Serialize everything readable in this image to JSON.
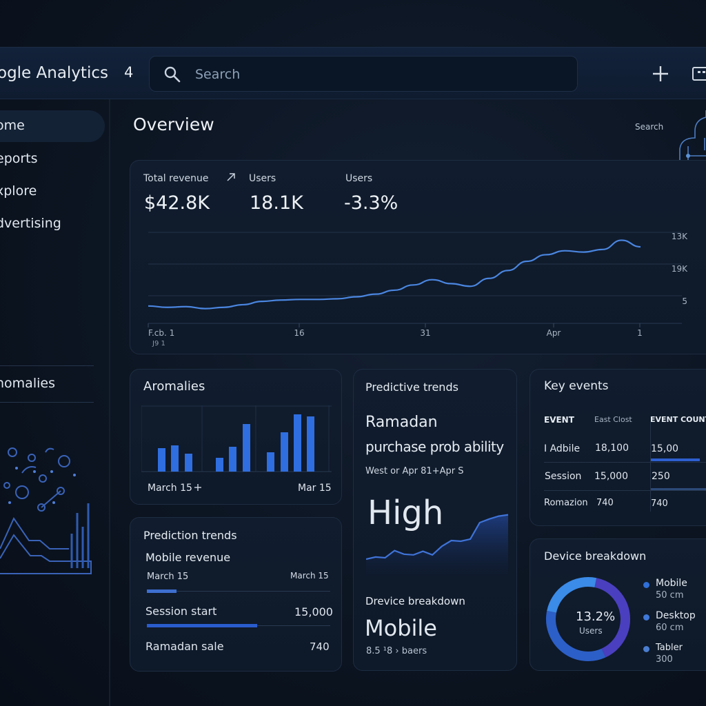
{
  "header": {
    "app_title": "ogle Analytics",
    "app_version": "4",
    "search_placeholder": "Search"
  },
  "sidebar": {
    "items": [
      {
        "label": "ome"
      },
      {
        "label": "eports"
      },
      {
        "label": "xplore"
      },
      {
        "label": "dvertising"
      }
    ],
    "section_label": "nomalies"
  },
  "overview": {
    "title": "Overview",
    "search_label": "Search",
    "metrics": [
      {
        "label": "Total revenue",
        "value": "$42.8K"
      },
      {
        "label": "Users",
        "value": "18.1K"
      },
      {
        "label": "Users",
        "value": "-3.3%"
      }
    ],
    "chart_data": {
      "type": "line",
      "x_ticks": [
        "F.cb. 1",
        "16",
        "31",
        "Apr",
        "1"
      ],
      "x_tick_sub": "J9 1",
      "y_ticks": [
        "13K",
        "19K",
        "5"
      ],
      "grid": true,
      "series": [
        {
          "values": [
            4.4,
            4.3,
            4.35,
            4.2,
            4.3,
            4.5,
            4.75,
            4.85,
            4.9,
            4.9,
            4.95,
            5.1,
            5.3,
            5.6,
            6.0,
            6.4,
            6.1,
            5.9,
            6.5,
            7.1,
            7.8,
            8.3,
            8.6,
            8.5,
            8.7,
            9.4,
            8.9
          ]
        }
      ]
    }
  },
  "anomalies_card": {
    "title": "Aromalies",
    "date_left": "March 15",
    "date_right": "Mar  15",
    "chart_data": {
      "type": "bar",
      "values": [
        3.4,
        3.8,
        2.6,
        2.0,
        3.6,
        6.9,
        2.8,
        5.7,
        8.3,
        8.0
      ]
    }
  },
  "prediction_card": {
    "title": "Prediction trends",
    "subtitle": "Mobile revenue",
    "date_left": "March 15",
    "date_right": "March 15",
    "rows": [
      {
        "label": "Session start",
        "value": "15,000",
        "progress": 0.6
      },
      {
        "label": "Ramadan sale",
        "value": "740"
      }
    ],
    "first_progress": 0.16
  },
  "predictive_card": {
    "title": "Predictive trends",
    "headline_1": "Ramadan",
    "headline_2": "purchase prob ability",
    "period": "West or Apr 81+Apr S",
    "level": "High",
    "device_title": "Drevice breakdown",
    "device_value": "Mobile",
    "device_sub": "8.5 ¹8 › baers",
    "chart_data": {
      "type": "area",
      "values": [
        2.4,
        2.7,
        2.6,
        3.6,
        3.1,
        3.0,
        3.5,
        3.0,
        4.2,
        5.0,
        4.9,
        5.2,
        7.5,
        8.0,
        8.4,
        8.6
      ]
    }
  },
  "key_events_card": {
    "title": "Key events",
    "columns": [
      "EVENT",
      "East Clost",
      "EVENT COUNT"
    ],
    "rows": [
      {
        "event": "I Adbile",
        "cost": "18,100",
        "count": "15,00"
      },
      {
        "event": "Session",
        "cost": "15,000",
        "count": "250"
      },
      {
        "event": "Romazion",
        "cost": "740",
        "count": "740"
      }
    ]
  },
  "device_card": {
    "title": "Device breakdown",
    "center_value": "13.2%",
    "center_label": "Users",
    "legend": [
      {
        "name": "Mobile",
        "value": "50 cm",
        "color": "#2f6fd6"
      },
      {
        "name": "Desktop",
        "value": "60 cm",
        "color": "#3f78d8"
      },
      {
        "name": "Tabler",
        "value": "300",
        "color": "#4a7dcf"
      }
    ],
    "chart_data": {
      "type": "pie",
      "values": [
        40,
        35,
        25
      ],
      "colors": [
        "#4a3fbf",
        "#2c5fc7",
        "#3b8be8"
      ]
    }
  }
}
